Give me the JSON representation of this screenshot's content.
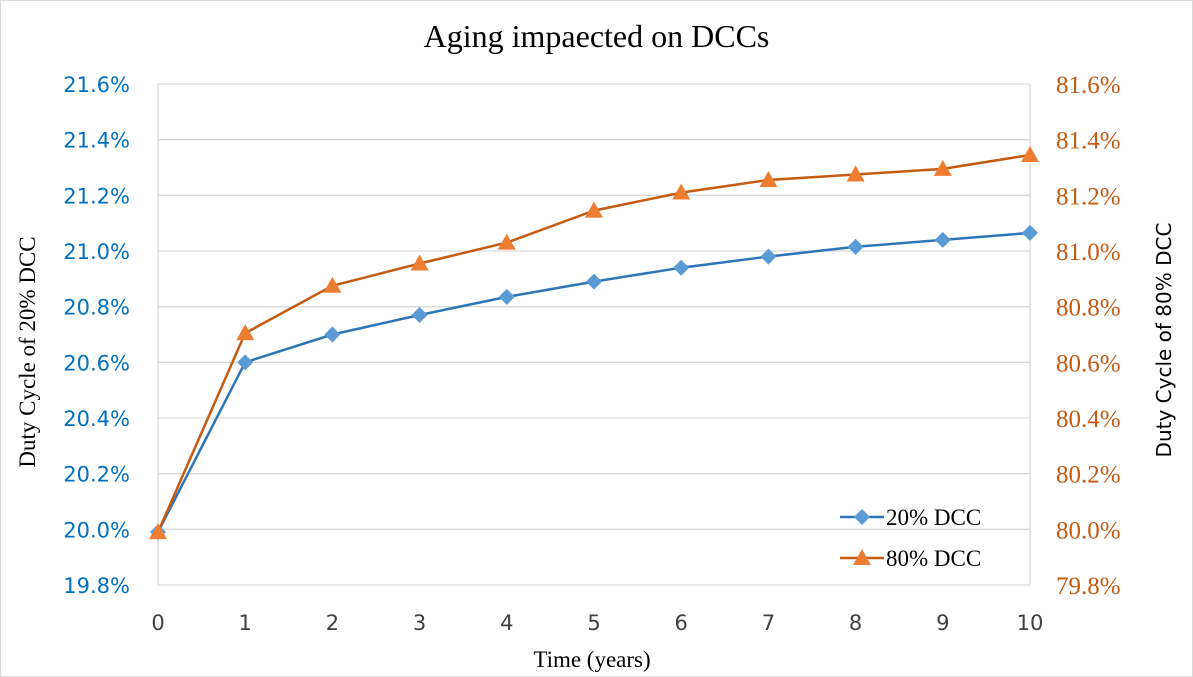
{
  "chart_data": {
    "type": "line",
    "title": "Aging impaected on DCCs",
    "xlabel": "Time (years)",
    "ylabel_left": "Duty Cycle of 20% DCC",
    "ylabel_right": "Duty Cycle of 80% DCC",
    "x": [
      0,
      1,
      2,
      3,
      4,
      5,
      6,
      7,
      8,
      9,
      10
    ],
    "xlim": [
      0,
      10
    ],
    "ylim_left": [
      19.8,
      21.6
    ],
    "ylim_right": [
      79.8,
      81.6
    ],
    "yticks_left": [
      "19.8%",
      "20.0%",
      "20.2%",
      "20.4%",
      "20.6%",
      "20.8%",
      "21.0%",
      "21.2%",
      "21.4%",
      "21.6%"
    ],
    "yticks_right": [
      "79.8%",
      "80.0%",
      "80.2%",
      "80.4%",
      "80.6%",
      "80.8%",
      "81.0%",
      "81.2%",
      "81.4%",
      "81.6%"
    ],
    "xticks": [
      "0",
      "1",
      "2",
      "3",
      "4",
      "5",
      "6",
      "7",
      "8",
      "9",
      "10"
    ],
    "grid": "horizontal",
    "legend_position": "bottom-right",
    "series": [
      {
        "name": "20% DCC",
        "axis": "left",
        "marker": "diamond",
        "color": "#2E75B6",
        "marker_color": "#5B9BD5",
        "values": [
          19.99,
          20.6,
          20.7,
          20.77,
          20.835,
          20.89,
          20.94,
          20.98,
          21.015,
          21.04,
          21.065
        ]
      },
      {
        "name": "80% DCC",
        "axis": "right",
        "marker": "triangle",
        "color": "#C55A11",
        "marker_color": "#ED7D31",
        "values": [
          79.99,
          80.705,
          80.875,
          80.955,
          81.03,
          81.145,
          81.21,
          81.255,
          81.275,
          81.295,
          81.345
        ]
      }
    ],
    "colors": {
      "left_axis_text": "#0070C0",
      "right_axis_text": "#C55A11",
      "grid": "#d9d9d9"
    }
  }
}
